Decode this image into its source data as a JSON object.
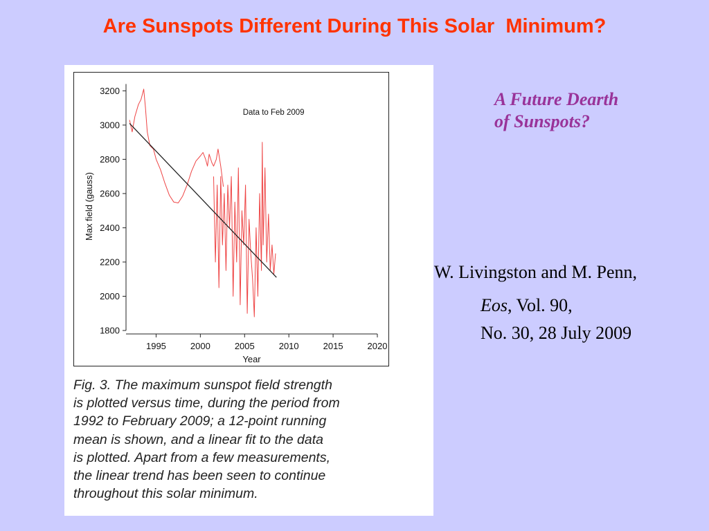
{
  "slide": {
    "title": "Are Sunspots Different During This Solar  Minimum?",
    "side_heading": [
      "A Future Dearth",
      "of Sunspots?"
    ],
    "citation": {
      "authors": "W. Livingston and M. Penn,",
      "journal": "Eos",
      "volume": ", Vol. 90,",
      "issue": "No. 30, 28 July 2009"
    }
  },
  "figure": {
    "caption_lines": [
      "Fig. 3. The maximum sunspot field strength",
      "is plotted versus time, during the period from",
      "1992 to February 2009; a 12-point running",
      "mean is shown, and a linear fit to the data",
      "is plotted. Apart from a few measurements,",
      "the linear trend has been seen to continue",
      "throughout this solar minimum."
    ]
  },
  "chart_data": {
    "type": "line",
    "xlabel": "Year",
    "ylabel": "Max field (gauss)",
    "annotation": "Data to Feb 2009",
    "xlim": [
      1991.6,
      2020
    ],
    "ylim": [
      1800,
      3250
    ],
    "xticks": [
      1995,
      2000,
      2005,
      2010,
      2015,
      2020
    ],
    "yticks": [
      1800,
      2000,
      2200,
      2400,
      2600,
      2800,
      3000,
      3200
    ],
    "colors": {
      "data": "#ee4444",
      "fit": "#222222"
    },
    "series": [
      {
        "role": "running-mean",
        "x": [
          1992.0,
          1992.3,
          1992.6,
          1993.0,
          1993.3,
          1993.6,
          1993.8,
          1994.0,
          1994.3,
          1994.7,
          1995.0,
          1995.5,
          1996.0,
          1996.5,
          1997.0,
          1997.5,
          1998.0,
          1998.5,
          1999.0,
          1999.5,
          2000.0,
          2000.3,
          2000.6,
          2000.8,
          2001.0,
          2001.3,
          2001.5,
          2001.8,
          2002.0,
          2002.3,
          2002.6
        ],
        "y": [
          3030,
          2960,
          3050,
          3120,
          3150,
          3210,
          3100,
          2960,
          2880,
          2860,
          2800,
          2740,
          2660,
          2590,
          2550,
          2545,
          2585,
          2650,
          2730,
          2790,
          2820,
          2840,
          2800,
          2760,
          2830,
          2780,
          2760,
          2800,
          2860,
          2760,
          2640
        ]
      },
      {
        "role": "measurements",
        "x": [
          2001.5,
          2001.7,
          2001.9,
          2002.1,
          2002.3,
          2002.5,
          2002.7,
          2002.9,
          2003.1,
          2003.3,
          2003.5,
          2003.7,
          2003.9,
          2004.1,
          2004.3,
          2004.5,
          2004.7,
          2004.9,
          2005.1,
          2005.3,
          2005.5,
          2005.7,
          2005.9,
          2006.1,
          2006.3,
          2006.5,
          2006.7,
          2006.9,
          2007.0,
          2007.1,
          2007.3,
          2007.5,
          2007.7,
          2007.9,
          2008.1,
          2008.3,
          2008.5
        ],
        "y": [
          2700,
          2200,
          2650,
          2050,
          2700,
          2300,
          2600,
          2150,
          2650,
          2400,
          2700,
          2000,
          2550,
          2200,
          2750,
          1950,
          2500,
          2300,
          2650,
          1900,
          2450,
          2250,
          2100,
          1880,
          2400,
          2000,
          2600,
          2150,
          2900,
          2300,
          2750,
          2200,
          2480,
          2150,
          2300,
          2130,
          2250
        ]
      },
      {
        "role": "linear-fit",
        "x": [
          1992.0,
          2008.6
        ],
        "y": [
          3010,
          2110
        ]
      }
    ]
  }
}
